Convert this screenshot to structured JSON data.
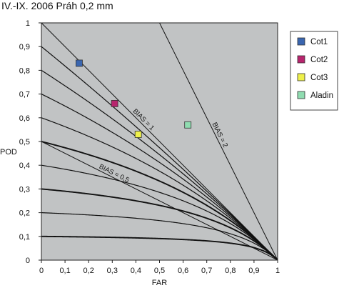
{
  "chart_data": {
    "type": "scatter",
    "title": "IV.-IX. 2006 Práh 0,2 mm",
    "xlabel": "FAR",
    "ylabel": "POD",
    "xlim": [
      0,
      1
    ],
    "ylim": [
      0,
      1
    ],
    "xticks": [
      "0",
      "0,1",
      "0,2",
      "0,3",
      "0,4",
      "0,5",
      "0,6",
      "0,7",
      "0,8",
      "0,9",
      "1"
    ],
    "yticks": [
      "0",
      "0,1",
      "0,2",
      "0,3",
      "0,4",
      "0,5",
      "0,6",
      "0,7",
      "0,8",
      "0,9",
      "1"
    ],
    "background": "#c1c3c4",
    "series": [
      {
        "name": "Cot1",
        "color": "#3a66b0",
        "x": 0.16,
        "y": 0.83
      },
      {
        "name": "Cot2",
        "color": "#b8256e",
        "x": 0.31,
        "y": 0.66
      },
      {
        "name": "Cot3",
        "color": "#eef04a",
        "x": 0.41,
        "y": 0.53
      },
      {
        "name": "Aladin",
        "color": "#8fdcb0",
        "x": 0.62,
        "y": 0.57
      }
    ],
    "bias_lines": [
      {
        "label": "BIAS = 0,5",
        "value": 0.5
      },
      {
        "label": "BIAS = 1",
        "value": 1
      },
      {
        "label": "BIAS = 2",
        "value": 2
      }
    ],
    "csi_levels": [
      0.1,
      0.2,
      0.3,
      0.4,
      0.5,
      0.6,
      0.7,
      0.8,
      0.9
    ],
    "highlighted_csi_levels": [
      0.1,
      0.3,
      0.5
    ],
    "legend_position": "right",
    "grid": false
  }
}
